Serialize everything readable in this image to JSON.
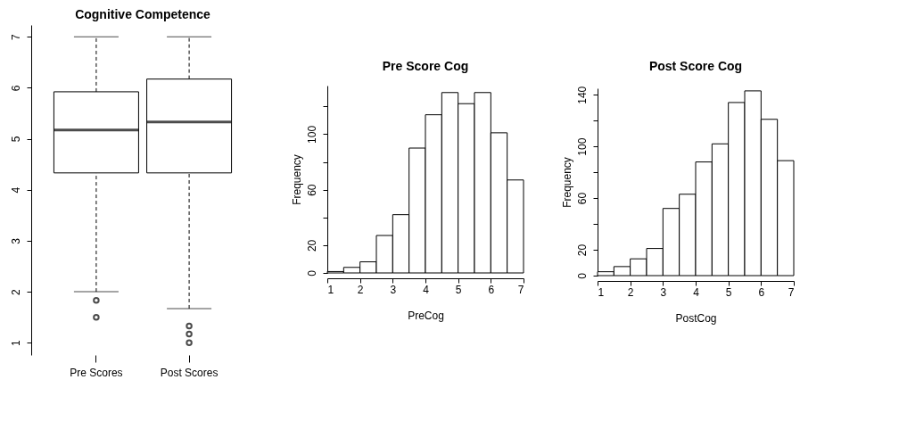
{
  "chart_data": [
    {
      "type": "box",
      "title": "Cognitive Competence",
      "categories": [
        "Pre Scores",
        "Post Scores"
      ],
      "boxes": [
        {
          "low": 2.0,
          "q1": 4.33,
          "median": 5.17,
          "q3": 5.92,
          "high": 7.0,
          "outliers": [
            1.83,
            1.5
          ]
        },
        {
          "low": 1.67,
          "q1": 4.33,
          "median": 5.33,
          "q3": 6.17,
          "high": 7.0,
          "outliers": [
            1.33,
            1.17,
            1.0
          ]
        }
      ],
      "ylim": [
        0.76,
        7.23
      ],
      "yticks": [
        1,
        2,
        3,
        4,
        5,
        6,
        7
      ],
      "grid": false
    },
    {
      "type": "histogram",
      "title": "Pre Score Cog",
      "xlabel": "PreCog",
      "ylabel": "Frequency",
      "bins": [
        1,
        1.5,
        2,
        2.5,
        3,
        3.5,
        4,
        4.5,
        5,
        5.5,
        6,
        6.5,
        7
      ],
      "values": [
        1,
        4,
        8,
        27,
        42,
        90,
        114,
        130,
        122,
        130,
        101,
        67
      ],
      "xlim": [
        1,
        7
      ],
      "xticks": [
        1,
        2,
        3,
        4,
        5,
        6,
        7
      ],
      "ylim": [
        0,
        135
      ],
      "yticks": [
        0,
        20,
        {
          "value": 40,
          "label": null
        },
        60,
        {
          "value": 80,
          "label": null
        },
        100,
        {
          "value": 120,
          "label": null
        }
      ],
      "grid": false
    },
    {
      "type": "histogram",
      "title": "Post Score Cog",
      "xlabel": "PostCog",
      "ylabel": "Frequency",
      "bins": [
        1,
        1.5,
        2,
        2.5,
        3,
        3.5,
        4,
        4.5,
        5,
        5.5,
        6,
        6.5,
        7
      ],
      "values": [
        3,
        7,
        13,
        21,
        52,
        63,
        88,
        102,
        134,
        143,
        121,
        89
      ],
      "xlim": [
        1,
        7
      ],
      "xticks": [
        1,
        2,
        3,
        4,
        5,
        6,
        7
      ],
      "ylim": [
        0,
        145
      ],
      "yticks": [
        0,
        20,
        {
          "value": 40,
          "label": null
        },
        60,
        {
          "value": 80,
          "label": null
        },
        100,
        {
          "value": 120,
          "label": null
        },
        140
      ],
      "grid": false
    }
  ]
}
